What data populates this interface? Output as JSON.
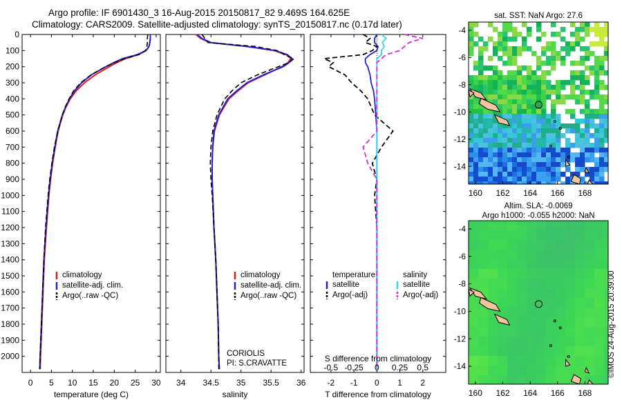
{
  "title_line1": "Argo profile: IF 6901430_3 16-Aug-2015 20150817_82 9.469S 164.625E",
  "title_line2": "Climatology: CARS2009. Satellite-adjusted climatology: synTS_20150817.nc (0.17d later)",
  "side_label": "©IMOS 24-Aug-2015 20:39:00",
  "colors": {
    "climatology": "#e31a1c",
    "satellite": "#1f1fd6",
    "argo": "#000000",
    "sat_diff": "#33d6e8",
    "argo_s_diff": "#d62ad6"
  },
  "chart_data": [
    {
      "type": "line",
      "name": "temperature_profile",
      "xlabel": "temperature (deg C)",
      "ylabel": "",
      "xlim": [
        -2,
        31
      ],
      "ylim": [
        2100,
        0
      ],
      "xticks": [
        0,
        5,
        10,
        15,
        20,
        25,
        30
      ],
      "yticks": [
        0,
        100,
        200,
        300,
        400,
        500,
        600,
        700,
        800,
        900,
        1000,
        1100,
        1200,
        1300,
        1400,
        1500,
        1600,
        1700,
        1800,
        1900,
        2000
      ],
      "legend": [
        "climatology",
        "satellite-adj. clim.",
        "Argo(..raw -QC)"
      ],
      "depth": [
        0,
        25,
        50,
        75,
        100,
        125,
        150,
        175,
        200,
        250,
        300,
        350,
        400,
        450,
        500,
        600,
        700,
        800,
        900,
        1000,
        1200,
        1400,
        1600,
        1800,
        2000,
        2080
      ],
      "series": [
        {
          "name": "climatology",
          "values": [
            28.6,
            28.6,
            28.5,
            28.3,
            27.6,
            25.8,
            22.7,
            20.6,
            18.8,
            15.5,
            12.9,
            10.9,
            9.5,
            8.5,
            7.7,
            6.6,
            5.9,
            5.3,
            4.8,
            4.4,
            3.8,
            3.3,
            3.0,
            2.7,
            2.4,
            2.3
          ]
        },
        {
          "name": "satellite-adj. clim.",
          "values": [
            28.6,
            28.6,
            28.5,
            28.3,
            27.6,
            25.5,
            22.0,
            19.9,
            18.0,
            14.6,
            12.2,
            10.5,
            9.3,
            8.4,
            7.6,
            6.5,
            5.8,
            5.2,
            4.7,
            4.3,
            3.7,
            3.2,
            2.9,
            2.6,
            2.3,
            2.2
          ]
        },
        {
          "name": "Argo(..raw -QC)",
          "values": [
            28.0,
            27.9,
            27.9,
            27.8,
            27.4,
            25.9,
            22.5,
            20.1,
            17.9,
            14.5,
            12.0,
            10.3,
            9.2,
            8.3,
            7.6,
            6.5,
            5.7,
            5.1,
            4.6,
            4.2,
            3.6,
            3.2,
            2.9,
            2.6,
            2.3,
            2.2
          ]
        }
      ]
    },
    {
      "type": "line",
      "name": "salinity_profile",
      "xlabel": "salinity",
      "xlim": [
        33.75,
        36.05
      ],
      "ylim": [
        2100,
        0
      ],
      "xticks": [
        34,
        34.5,
        35,
        35.5,
        36
      ],
      "legend": [
        "climatology",
        "satellite-adj. clim.",
        "Argo(..raw -QC)"
      ],
      "annotation": [
        "CORIOLIS",
        "PI: S.CRAVATTE"
      ],
      "depth": [
        0,
        25,
        50,
        75,
        100,
        125,
        150,
        175,
        200,
        250,
        300,
        350,
        400,
        500,
        600,
        700,
        800,
        900,
        1000,
        1200,
        1400,
        1600,
        1800,
        2000,
        2080
      ],
      "series": [
        {
          "name": "climatology",
          "values": [
            34.25,
            34.33,
            34.48,
            35.1,
            35.55,
            35.75,
            35.83,
            35.78,
            35.68,
            35.4,
            35.12,
            34.95,
            34.8,
            34.64,
            34.56,
            34.53,
            34.52,
            34.52,
            34.53,
            34.55,
            34.58,
            34.6,
            34.62,
            34.63,
            34.64
          ]
        },
        {
          "name": "satellite-adj. clim.",
          "values": [
            34.27,
            34.35,
            34.5,
            35.12,
            35.57,
            35.77,
            35.85,
            35.8,
            35.7,
            35.38,
            35.1,
            34.93,
            34.78,
            34.63,
            34.55,
            34.53,
            34.52,
            34.52,
            34.53,
            34.55,
            34.58,
            34.6,
            34.62,
            34.63,
            34.64
          ]
        },
        {
          "name": "Argo(..raw -QC)",
          "values": [
            34.35,
            34.4,
            34.45,
            35.25,
            35.6,
            35.72,
            35.88,
            35.8,
            35.62,
            35.28,
            35.0,
            34.85,
            34.73,
            34.6,
            34.53,
            34.5,
            34.49,
            34.5,
            34.52,
            34.55,
            34.58,
            34.6,
            34.62,
            34.63,
            34.63
          ]
        }
      ]
    },
    {
      "type": "line",
      "name": "difference_profile",
      "xlabel": "T difference from climatology",
      "xlabel_top": "S difference from climatology",
      "xlim": [
        -2.9,
        3.0
      ],
      "ylim": [
        2100,
        0
      ],
      "xticks": [
        -2,
        -1,
        0,
        1,
        2
      ],
      "top_ticks": [
        "-0.5",
        "-0.25",
        "0",
        "0.25",
        "0.5"
      ],
      "legend_temperature": [
        "temperature",
        "satellite",
        "Argo(-adj)"
      ],
      "legend_salinity": [
        "salinity",
        "satellite",
        "Argo(-adj)"
      ],
      "depth": [
        0,
        25,
        50,
        75,
        100,
        125,
        150,
        175,
        200,
        250,
        300,
        350,
        400,
        500,
        600,
        700,
        800,
        900,
        1000,
        1200,
        1400,
        1600,
        1800,
        2000,
        2080
      ],
      "series": [
        {
          "name": "satellite T",
          "values": [
            0,
            -0.1,
            -0.1,
            0.05,
            0,
            -0.3,
            -0.5,
            -0.5,
            -0.4,
            -0.3,
            -0.25,
            -0.15,
            -0.1,
            -0.05,
            0,
            0,
            0,
            0,
            0,
            0,
            0,
            0,
            0,
            0,
            0
          ]
        },
        {
          "name": "Argo(-adj) T",
          "values": [
            -0.6,
            -0.3,
            -0.5,
            0,
            -0.2,
            -0.6,
            -2.3,
            -1.9,
            -2.1,
            -1.4,
            -1.1,
            -0.7,
            -0.4,
            -0.1,
            0.7,
            0.2,
            -0.2,
            0,
            -0.1,
            0,
            0,
            0,
            0,
            0,
            0
          ]
        },
        {
          "name": "satellite S",
          "values": [
            0.05,
            0.1,
            0.06,
            0.08,
            0.05,
            0.05,
            0,
            0,
            0,
            0,
            0,
            0,
            0,
            0,
            0,
            0,
            0,
            0,
            0,
            0,
            0,
            0,
            0,
            0,
            0
          ]
        },
        {
          "name": "Argo(-adj) S",
          "values": [
            0.3,
            0.5,
            0.35,
            0.3,
            0.25,
            0.1,
            0.05,
            0,
            0,
            0,
            0,
            0,
            0,
            0,
            0,
            -0.15,
            -0.1,
            0,
            0,
            0,
            0,
            0,
            0,
            0,
            0
          ]
        }
      ]
    },
    {
      "type": "heatmap",
      "name": "sst_map",
      "title": "sat. SST: NaN Argo: 27.6",
      "xticks": [
        160,
        162,
        164,
        166,
        168
      ],
      "yticks": [
        -4,
        -6,
        -8,
        -10,
        -12,
        -14
      ],
      "xlim": [
        159.5,
        169.7
      ],
      "ylim": [
        -15.3,
        -3.4
      ],
      "argo_position": [
        164.625,
        -9.469
      ]
    },
    {
      "type": "heatmap",
      "name": "sla_map",
      "title": [
        "Altim. SLA: -0.0069",
        "Argo h1000: -0.055 h2000: NaN"
      ],
      "xticks": [
        160,
        162,
        164,
        166,
        168
      ],
      "yticks": [
        -4,
        -6,
        -8,
        -10,
        -12,
        -14
      ],
      "xlim": [
        159.5,
        169.7
      ],
      "ylim": [
        -15.3,
        -3.4
      ],
      "argo_position": [
        164.625,
        -9.469
      ]
    }
  ]
}
